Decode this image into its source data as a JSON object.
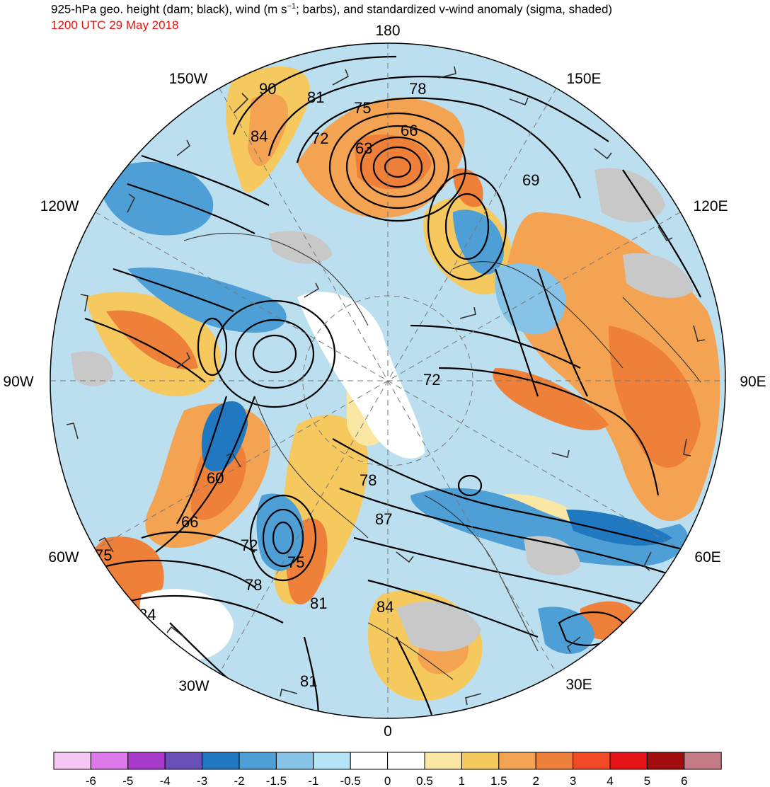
{
  "header": {
    "title_prefix": "925-hPa geo. height (dam; black), wind (m s",
    "title_exp": "−1",
    "title_suffix": "; barbs), and standardized v-wind anomaly (sigma, shaded)",
    "subtitle": "1200 UTC 29 May 2018"
  },
  "map": {
    "projection": "north-polar-stereographic",
    "longitude_labels": [
      {
        "text": "180",
        "angle_deg": 0
      },
      {
        "text": "150E",
        "angle_deg": 30
      },
      {
        "text": "120E",
        "angle_deg": 60
      },
      {
        "text": "90E",
        "angle_deg": 90
      },
      {
        "text": "60E",
        "angle_deg": 120
      },
      {
        "text": "30E",
        "angle_deg": 150
      },
      {
        "text": "0",
        "angle_deg": 180
      },
      {
        "text": "30W",
        "angle_deg": 210
      },
      {
        "text": "60W",
        "angle_deg": 240
      },
      {
        "text": "90W",
        "angle_deg": 270
      },
      {
        "text": "120W",
        "angle_deg": 300
      },
      {
        "text": "150W",
        "angle_deg": 330
      }
    ],
    "contour_labels": [
      "90",
      "81",
      "78",
      "75",
      "72",
      "66",
      "63",
      "84",
      "69",
      "72",
      "60",
      "66",
      "72",
      "75",
      "78",
      "87",
      "78",
      "81",
      "84",
      "81",
      "75",
      "84"
    ]
  },
  "colorbar": {
    "labels": [
      "-6",
      "-5",
      "-4",
      "-3",
      "-2",
      "-1.5",
      "-1",
      "-0.5",
      "0",
      "0.5",
      "1",
      "1.5",
      "2",
      "3",
      "4",
      "5",
      "6"
    ],
    "colors": [
      "#f6c6f4",
      "#dc78ea",
      "#a83acb",
      "#6a4fb8",
      "#1f78c0",
      "#4d9fd6",
      "#86c3e6",
      "#b4e4f5",
      "#ffffff",
      "#ffffff",
      "#fbe7a4",
      "#f6c95e",
      "#f3a352",
      "#ef8039",
      "#f04a26",
      "#e41419",
      "#a20c0c",
      "#c47b86"
    ]
  }
}
